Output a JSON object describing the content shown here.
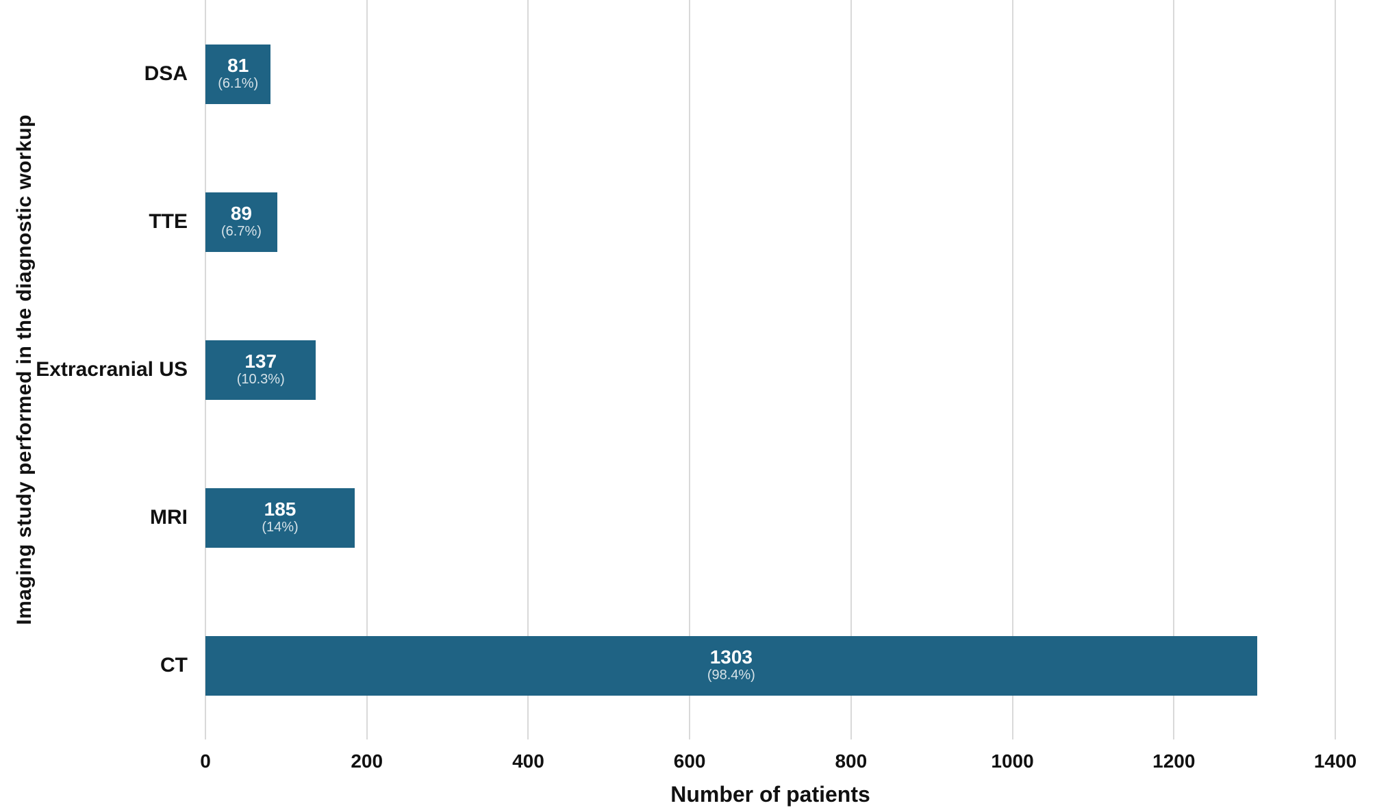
{
  "chart_data": {
    "type": "bar",
    "orientation": "horizontal",
    "categories": [
      "DSA",
      "TTE",
      "Extracranial US",
      "MRI",
      "CT"
    ],
    "values": [
      81,
      89,
      137,
      185,
      1303
    ],
    "percent_labels": [
      "(6.1%)",
      "(6.7%)",
      "(10.3%)",
      "(14%)",
      "(98.4%)"
    ],
    "xlabel": "Number of patients",
    "ylabel": "Imaging study performed in the diagnostic workup",
    "xlim": [
      0,
      1400
    ],
    "xticks": [
      0,
      200,
      400,
      600,
      800,
      1000,
      1200,
      1400
    ],
    "grid": "vertical-gridlines-on",
    "legend": "none",
    "colors": {
      "bar_fill": "#1f6384",
      "gridline": "#d9d9d9",
      "value_label": "#ffffff",
      "percent_label": "rgba(255,255,255,0.82)",
      "axis_text": "#111111",
      "background": "#ffffff"
    }
  }
}
